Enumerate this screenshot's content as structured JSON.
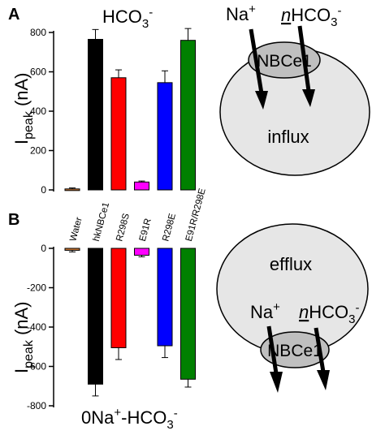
{
  "chart_data": [
    {
      "type": "bar",
      "panel_label": "A",
      "title_main": "HCO",
      "title_sub": "3",
      "title_sup": "-",
      "ylabel_main": "I",
      "ylabel_sub": "peak",
      "ylabel_unit": " (nA)",
      "ylim": [
        0,
        800
      ],
      "yticks": [
        "0",
        "200",
        "400",
        "600",
        "800"
      ],
      "tick_values": [
        0,
        200,
        400,
        600,
        800
      ],
      "categories": [
        "Water",
        "hkNBCe1",
        "R298S",
        "E91R",
        "R298E",
        "E91R/R298E"
      ],
      "values": [
        5,
        765,
        570,
        40,
        545,
        760
      ],
      "errors": [
        5,
        50,
        40,
        5,
        60,
        60
      ],
      "colors": [
        "#cc7733",
        "#000000",
        "#ff0000",
        "#ff00ff",
        "#0000ff",
        "#008000"
      ]
    },
    {
      "type": "bar",
      "panel_label": "B",
      "title_main": "0Na",
      "title_sup1": "+",
      "title_mid": "-HCO",
      "title_sub": "3",
      "title_sup2": "-",
      "ylabel_main": "I",
      "ylabel_sub": "peak",
      "ylabel_unit": " (nA)",
      "ylim": [
        -800,
        0
      ],
      "yticks": [
        "0",
        "-200",
        "-400",
        "-600",
        "-800"
      ],
      "tick_values": [
        0,
        -200,
        -400,
        -600,
        -800
      ],
      "categories": [
        "Water",
        "hkNBCe1",
        "R298S",
        "E91R",
        "R298E",
        "E91R/R298E"
      ],
      "values": [
        -10,
        -690,
        -505,
        -35,
        -495,
        -665
      ],
      "errors": [
        8,
        60,
        60,
        8,
        60,
        40
      ],
      "colors": [
        "#cc7733",
        "#000000",
        "#ff0000",
        "#ff00ff",
        "#0000ff",
        "#008000"
      ]
    }
  ],
  "diagram_a": {
    "na": "Na",
    "na_sup": "+",
    "hco_n": "n",
    "hco": "HCO",
    "hco_sub": "3",
    "hco_sup": "-",
    "transporter": "NBCe1",
    "label": "influx",
    "cell_color": "#e6e6e6",
    "transporter_color": "#bfbfbf"
  },
  "diagram_b": {
    "na": "Na",
    "na_sup": "+",
    "hco_n": "n",
    "hco": "HCO",
    "hco_sub": "3",
    "hco_sup": "-",
    "transporter": "NBCe1",
    "label": "efflux",
    "cell_color": "#e6e6e6",
    "transporter_color": "#bfbfbf"
  }
}
